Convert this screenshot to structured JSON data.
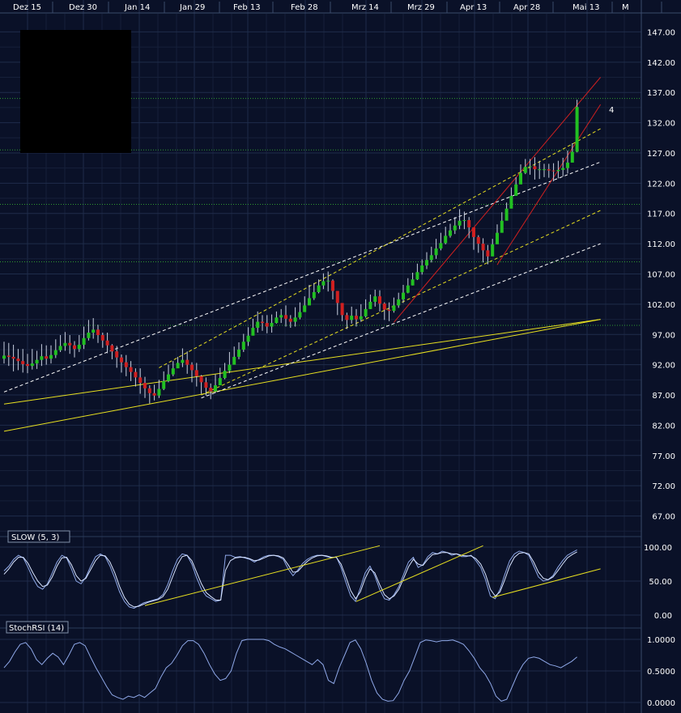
{
  "chart_data": [
    {
      "type": "candlestick",
      "panel": "price",
      "x_ticks": [
        "Dez 15",
        "Dez 30",
        "Jan 14",
        "Jan 29",
        "Feb 13",
        "Feb 28",
        "Mrz 14",
        "Mrz 29",
        "Apr 13",
        "Apr 28",
        "Mai 13",
        "M"
      ],
      "y_ticks": [
        "147.00",
        "142.00",
        "137.00",
        "132.00",
        "127.00",
        "122.00",
        "117.00",
        "112.00",
        "107.00",
        "102.00",
        "97.00",
        "92.00",
        "87.00",
        "82.00",
        "77.00",
        "72.00",
        "67.00"
      ],
      "ylim": [
        64,
        150
      ],
      "grid": true,
      "horizontal_levels": [
        136,
        127.5,
        118.5,
        109,
        98.5
      ],
      "close": [
        93.5,
        93.3,
        93.0,
        92.6,
        92.1,
        91.8,
        92.2,
        92.8,
        93.4,
        93.0,
        93.6,
        94.4,
        95.1,
        95.6,
        95.2,
        94.6,
        95.3,
        96.4,
        97.3,
        97.8,
        96.9,
        96.0,
        95.2,
        94.2,
        93.2,
        92.4,
        91.6,
        90.8,
        89.9,
        89.0,
        88.1,
        87.3,
        86.9,
        88.0,
        89.3,
        90.4,
        91.4,
        92.3,
        92.8,
        92.0,
        91.1,
        90.1,
        89.1,
        88.2,
        87.6,
        88.6,
        89.8,
        91.0,
        92.0,
        93.3,
        94.5,
        95.8,
        96.8,
        98.1,
        99.1,
        98.9,
        98.3,
        98.9,
        99.8,
        100.2,
        99.6,
        99.1,
        99.8,
        100.7,
        101.8,
        103.0,
        104.0,
        105.1,
        105.8,
        105.9,
        104.2,
        102.2,
        100.2,
        99.4,
        100.1,
        99.5,
        100.0,
        101.2,
        102.4,
        103.3,
        102.1,
        101.1,
        100.9,
        101.8,
        102.8,
        103.9,
        105.1,
        106.1,
        107.3,
        108.4,
        109.3,
        110.1,
        111.2,
        112.1,
        113.3,
        114.2,
        115.0,
        115.8,
        115.9,
        114.7,
        113.1,
        112.0,
        110.9,
        109.9,
        111.9,
        113.8,
        115.8,
        117.8,
        119.9,
        121.8,
        123.7,
        124.7,
        124.8,
        124.3,
        124.3,
        124.3,
        124.1,
        124.0,
        124.2,
        124.5,
        125.4,
        127.2,
        134.6
      ],
      "high": [
        95.8,
        95.6,
        95.3,
        94.6,
        94.6,
        93.8,
        94.6,
        94.3,
        95.4,
        95.2,
        95.2,
        96.2,
        96.9,
        97.4,
        96.9,
        95.9,
        96.9,
        98.3,
        99.4,
        99.7,
        98.6,
        97.3,
        97.3,
        95.4,
        95.1,
        93.7,
        93.6,
        92.6,
        91.4,
        91.4,
        90.0,
        88.6,
        88.7,
        89.5,
        90.9,
        92.0,
        92.6,
        93.3,
        94.7,
        94.2,
        92.4,
        92.3,
        90.3,
        89.9,
        88.9,
        90.4,
        91.5,
        92.3,
        94.1,
        95.0,
        95.7,
        97.1,
        98.2,
        99.6,
        100.8,
        100.2,
        100.2,
        100.3,
        100.8,
        101.2,
        101.8,
        100.2,
        101.5,
        102.3,
        103.3,
        105.2,
        105.5,
        106.1,
        107.1,
        107.4,
        106.1,
        103.4,
        101.8,
        100.6,
        101.6,
        101.2,
        102.0,
        102.8,
        103.6,
        104.4,
        104.3,
        102.3,
        102.3,
        103.1,
        103.9,
        105.2,
        106.3,
        107.2,
        108.7,
        109.4,
        110.6,
        111.5,
        112.8,
        113.8,
        114.8,
        115.3,
        116.4,
        117.7,
        117.3,
        116.4,
        114.2,
        113.4,
        112.9,
        111.8,
        112.8,
        115.2,
        117.2,
        118.8,
        121.3,
        123.0,
        125.1,
        126.0,
        126.0,
        126.3,
        125.7,
        125.2,
        125.2,
        125.3,
        125.7,
        126.2,
        127.4,
        128.6,
        135.8
      ],
      "low": [
        92.2,
        91.8,
        90.9,
        91.1,
        90.7,
        90.6,
        91.2,
        91.3,
        91.8,
        92.0,
        92.2,
        93.1,
        94.1,
        94.3,
        93.8,
        93.2,
        94.1,
        94.6,
        96.0,
        96.3,
        95.6,
        94.8,
        93.9,
        92.9,
        91.5,
        90.7,
        90.1,
        89.3,
        88.4,
        87.2,
        86.5,
        85.6,
        86.1,
        86.5,
        87.8,
        89.1,
        90.1,
        91.5,
        91.6,
        90.5,
        89.1,
        88.4,
        87.2,
        86.9,
        86.3,
        87.3,
        88.8,
        89.6,
        90.6,
        92.3,
        92.9,
        94.1,
        95.1,
        97.2,
        97.3,
        97.6,
        97.2,
        97.3,
        98.8,
        98.9,
        98.3,
        98.1,
        98.3,
        99.5,
        100.8,
        101.9,
        102.7,
        103.8,
        104.5,
        104.1,
        102.8,
        100.2,
        99.2,
        97.9,
        98.8,
        98.3,
        99.1,
        99.8,
        101.2,
        101.6,
        100.8,
        99.4,
        99.2,
        100.6,
        101.4,
        102.2,
        103.8,
        105.1,
        106.0,
        106.9,
        107.8,
        108.9,
        109.5,
        110.9,
        111.9,
        113.0,
        113.6,
        114.4,
        114.4,
        112.9,
        111.0,
        110.5,
        108.9,
        108.6,
        110.8,
        112.7,
        114.5,
        116.9,
        118.6,
        120.3,
        122.1,
        123.5,
        123.4,
        122.6,
        122.7,
        123.0,
        122.9,
        122.3,
        122.8,
        123.1,
        123.6,
        125.7,
        127.1
      ],
      "colors": {
        "up": "#22c022",
        "down": "#d02020",
        "background": "#0a1128",
        "grid": "#2a3a5a",
        "axis_text": "#ffffff"
      },
      "trendlines": [
        {
          "color": "#e8e020",
          "style": "solid",
          "from": [
            0,
            81
          ],
          "to": [
            127,
            99.5
          ]
        },
        {
          "color": "#e8e020",
          "style": "solid",
          "from": [
            0,
            85.5
          ],
          "to": [
            127,
            99.5
          ]
        },
        {
          "color": "#ffffff",
          "style": "dashed",
          "from": [
            0,
            87.5
          ],
          "to": [
            127,
            125.5
          ]
        },
        {
          "color": "#ffffff",
          "style": "dashed",
          "from": [
            42,
            86.5
          ],
          "to": [
            127,
            112
          ]
        },
        {
          "color": "#e8e020",
          "style": "dashed",
          "from": [
            33,
            91.5
          ],
          "to": [
            127,
            131
          ]
        },
        {
          "color": "#e8e020",
          "style": "dashed",
          "from": [
            42,
            87
          ],
          "to": [
            127,
            117.5
          ]
        },
        {
          "color": "#d02020",
          "style": "solid",
          "from": [
            83,
            99
          ],
          "to": [
            127,
            139.5
          ]
        },
        {
          "color": "#d02020",
          "style": "solid",
          "from": [
            105,
            108.5
          ],
          "to": [
            127,
            135
          ]
        }
      ],
      "annotation": "4"
    },
    {
      "type": "line",
      "panel": "stochastic",
      "title": "SLOW (5, 3)",
      "y_ticks": [
        "100.00",
        "50.00",
        "0.00"
      ],
      "ylim": [
        -10,
        115
      ],
      "series": [
        {
          "values": [
            65,
            72,
            82,
            88,
            84,
            70,
            54,
            42,
            38,
            46,
            62,
            78,
            88,
            84,
            68,
            50,
            46,
            56,
            72,
            86,
            90,
            86,
            72,
            54,
            34,
            20,
            12,
            10,
            14,
            18,
            20,
            22,
            24,
            30,
            45,
            65,
            82,
            90,
            88,
            75,
            55,
            38,
            28,
            24,
            20,
            22,
            88,
            88,
            85,
            86,
            84,
            82,
            78,
            82,
            86,
            88,
            88,
            86,
            82,
            68,
            58,
            66,
            76,
            82,
            86,
            88,
            88,
            86,
            84,
            86,
            70,
            48,
            28,
            20,
            40,
            62,
            72,
            58,
            38,
            24,
            22,
            30,
            42,
            60,
            78,
            85,
            70,
            74,
            86,
            92,
            90,
            94,
            92,
            88,
            90,
            86,
            86,
            88,
            80,
            70,
            52,
            28,
            24,
            38,
            60,
            80,
            90,
            94,
            92,
            88,
            72,
            56,
            50,
            52,
            58,
            70,
            80,
            88,
            92,
            96
          ]
        },
        {
          "values": [
            60,
            68,
            78,
            85,
            85,
            76,
            62,
            50,
            42,
            44,
            56,
            72,
            84,
            85,
            74,
            58,
            50,
            54,
            67,
            80,
            88,
            87,
            78,
            62,
            42,
            26,
            16,
            12,
            13,
            16,
            19,
            21,
            23,
            27,
            38,
            56,
            74,
            86,
            88,
            80,
            63,
            46,
            33,
            27,
            22,
            22,
            66,
            80,
            84,
            85,
            85,
            83,
            80,
            81,
            84,
            87,
            88,
            87,
            84,
            74,
            63,
            64,
            72,
            79,
            84,
            87,
            88,
            87,
            85,
            85,
            75,
            56,
            36,
            24,
            34,
            54,
            68,
            62,
            45,
            30,
            24,
            28,
            38,
            54,
            71,
            82,
            75,
            73,
            82,
            89,
            90,
            92,
            92,
            90,
            90,
            88,
            87,
            87,
            83,
            75,
            60,
            38,
            28,
            34,
            52,
            72,
            85,
            91,
            92,
            90,
            78,
            63,
            54,
            52,
            56,
            65,
            75,
            84,
            89,
            93
          ]
        }
      ],
      "colors": {
        "primary": "#8fa8e8",
        "secondary": "#d8e4ff"
      },
      "trendlines": [
        {
          "color": "#e8e020",
          "from": [
            30,
            14
          ],
          "to": [
            80,
            102
          ]
        },
        {
          "color": "#e8e020",
          "from": [
            75,
            20
          ],
          "to": [
            102,
            102
          ]
        },
        {
          "color": "#e8e020",
          "from": [
            104,
            26
          ],
          "to": [
            127,
            68
          ]
        }
      ]
    },
    {
      "type": "line",
      "panel": "stochrsi",
      "title": "StochRSI (14)",
      "y_ticks": [
        "1.0000",
        "0.5000",
        "0.0000"
      ],
      "ylim": [
        -0.05,
        1.12
      ],
      "series": [
        {
          "values": [
            0.55,
            0.65,
            0.8,
            0.92,
            0.95,
            0.85,
            0.68,
            0.6,
            0.7,
            0.78,
            0.72,
            0.6,
            0.75,
            0.92,
            0.95,
            0.9,
            0.72,
            0.55,
            0.4,
            0.25,
            0.12,
            0.08,
            0.05,
            0.1,
            0.08,
            0.12,
            0.08,
            0.15,
            0.22,
            0.4,
            0.55,
            0.62,
            0.75,
            0.9,
            0.98,
            0.98,
            0.92,
            0.78,
            0.6,
            0.45,
            0.35,
            0.38,
            0.5,
            0.78,
            0.98,
            1.0,
            1.0,
            1.0,
            1.0,
            0.98,
            0.92,
            0.88,
            0.85,
            0.8,
            0.75,
            0.7,
            0.65,
            0.6,
            0.68,
            0.6,
            0.35,
            0.3,
            0.55,
            0.75,
            0.95,
            0.99,
            0.85,
            0.62,
            0.35,
            0.15,
            0.05,
            0.02,
            0.03,
            0.15,
            0.35,
            0.5,
            0.72,
            0.95,
            0.99,
            0.98,
            0.96,
            0.98,
            0.98,
            0.99,
            0.96,
            0.92,
            0.82,
            0.7,
            0.55,
            0.45,
            0.3,
            0.1,
            0.02,
            0.05,
            0.25,
            0.45,
            0.6,
            0.7,
            0.72,
            0.7,
            0.65,
            0.6,
            0.58,
            0.55,
            0.6,
            0.65,
            0.72
          ]
        }
      ],
      "colors": {
        "line": "#8fa8e8"
      }
    }
  ]
}
